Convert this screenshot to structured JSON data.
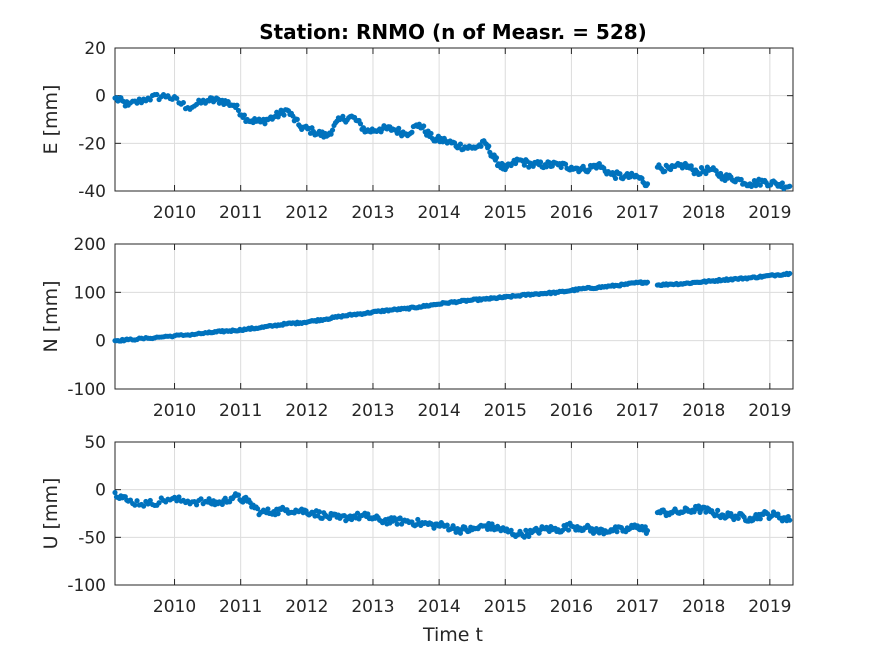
{
  "figure": {
    "title": "Station: RNMO (n of Measr. = 528)",
    "xlabel": "Time t",
    "marker_color": "#0072BD"
  },
  "chart_data": [
    {
      "type": "scatter",
      "name": "east",
      "ylabel": "E [mm]",
      "xlim": [
        2009.1,
        2019.35
      ],
      "ylim": [
        -40,
        20
      ],
      "x_ticks": [
        2010,
        2011,
        2012,
        2013,
        2014,
        2015,
        2016,
        2017,
        2018,
        2019
      ],
      "y_ticks": [
        -40,
        -20,
        0,
        20
      ],
      "grid": true,
      "x": [
        2009.1,
        2009.3,
        2009.6,
        2009.9,
        2010.2,
        2010.5,
        2010.7,
        2010.9,
        2011.1,
        2011.3,
        2011.5,
        2011.7,
        2011.9,
        2012.1,
        2012.3,
        2012.5,
        2012.7,
        2012.9,
        2013.1,
        2013.3,
        2013.5,
        2013.7,
        2013.9,
        2014.1,
        2014.3,
        2014.5,
        2014.7,
        2014.85,
        2015.0,
        2015.2,
        2015.4,
        2015.6,
        2015.8,
        2016.0,
        2016.2,
        2016.4,
        2016.6,
        2016.8,
        2017.0,
        2017.15,
        2017.3,
        2017.5,
        2017.7,
        2017.9,
        2018.1,
        2018.3,
        2018.5,
        2018.7,
        2018.9,
        2019.1,
        2019.3
      ],
      "y": [
        -1,
        -4,
        -1,
        0,
        -5,
        -2,
        -2,
        -4,
        -10,
        -11,
        -9,
        -6,
        -13,
        -15,
        -17,
        -10,
        -9,
        -15,
        -14,
        -14,
        -16,
        -12,
        -18,
        -19,
        -21,
        -22,
        -20,
        -27,
        -31,
        -27,
        -29,
        -29,
        -29,
        -30,
        -31,
        -29,
        -33,
        -34,
        -34,
        -37,
        -30,
        -31,
        -29,
        -32,
        -31,
        -34,
        -35,
        -37,
        -36,
        -37,
        -38
      ]
    },
    {
      "type": "scatter",
      "name": "north",
      "ylabel": "N [mm]",
      "xlim": [
        2009.1,
        2019.35
      ],
      "ylim": [
        -100,
        200
      ],
      "x_ticks": [
        2010,
        2011,
        2012,
        2013,
        2014,
        2015,
        2016,
        2017,
        2018,
        2019
      ],
      "y_ticks": [
        -100,
        0,
        100,
        200
      ],
      "grid": true,
      "x": [
        2009.1,
        2009.3,
        2009.6,
        2009.9,
        2010.2,
        2010.5,
        2010.7,
        2010.9,
        2011.1,
        2011.3,
        2011.5,
        2011.7,
        2011.9,
        2012.1,
        2012.3,
        2012.5,
        2012.7,
        2012.9,
        2013.1,
        2013.3,
        2013.5,
        2013.7,
        2013.9,
        2014.1,
        2014.3,
        2014.5,
        2014.7,
        2014.85,
        2015.0,
        2015.2,
        2015.4,
        2015.6,
        2015.8,
        2016.0,
        2016.2,
        2016.4,
        2016.6,
        2016.8,
        2017.0,
        2017.15,
        2017.3,
        2017.5,
        2017.7,
        2017.9,
        2018.1,
        2018.3,
        2018.5,
        2018.7,
        2018.9,
        2019.1,
        2019.3
      ],
      "y": [
        0,
        2,
        5,
        9,
        12,
        16,
        19,
        21,
        24,
        27,
        31,
        35,
        37,
        41,
        45,
        50,
        54,
        57,
        61,
        64,
        66,
        70,
        74,
        78,
        81,
        84,
        86,
        88,
        90,
        93,
        96,
        98,
        100,
        104,
        108,
        110,
        113,
        116,
        120,
        121,
        115,
        117,
        118,
        121,
        123,
        126,
        128,
        130,
        133,
        136,
        139
      ]
    },
    {
      "type": "scatter",
      "name": "up",
      "ylabel": "U [mm]",
      "xlim": [
        2009.1,
        2019.35
      ],
      "ylim": [
        -100,
        50
      ],
      "x_ticks": [
        2010,
        2011,
        2012,
        2013,
        2014,
        2015,
        2016,
        2017,
        2018,
        2019
      ],
      "y_ticks": [
        -100,
        -50,
        0,
        50
      ],
      "grid": true,
      "x": [
        2009.1,
        2009.3,
        2009.6,
        2009.9,
        2010.2,
        2010.5,
        2010.7,
        2010.9,
        2011.1,
        2011.3,
        2011.5,
        2011.7,
        2011.9,
        2012.1,
        2012.3,
        2012.5,
        2012.7,
        2012.9,
        2013.1,
        2013.3,
        2013.5,
        2013.7,
        2013.9,
        2014.1,
        2014.3,
        2014.5,
        2014.7,
        2014.85,
        2015.0,
        2015.2,
        2015.4,
        2015.6,
        2015.8,
        2016.0,
        2016.2,
        2016.4,
        2016.6,
        2016.8,
        2017.0,
        2017.15,
        2017.3,
        2017.5,
        2017.7,
        2017.9,
        2018.1,
        2018.3,
        2018.5,
        2018.7,
        2018.9,
        2019.1,
        2019.3
      ],
      "y": [
        -3,
        -12,
        -15,
        -10,
        -12,
        -13,
        -14,
        -7,
        -12,
        -24,
        -23,
        -21,
        -22,
        -24,
        -28,
        -30,
        -28,
        -28,
        -32,
        -33,
        -33,
        -35,
        -37,
        -38,
        -42,
        -42,
        -38,
        -40,
        -43,
        -47,
        -45,
        -41,
        -42,
        -38,
        -40,
        -44,
        -42,
        -43,
        -38,
        -43,
        -24,
        -24,
        -23,
        -20,
        -23,
        -27,
        -28,
        -30,
        -26,
        -27,
        -32
      ]
    }
  ]
}
